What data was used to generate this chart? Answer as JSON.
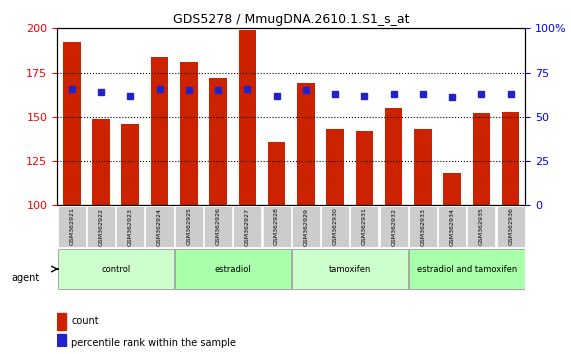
{
  "title": "GDS5278 / MmugDNA.2610.1.S1_s_at",
  "samples": [
    "GSM362921",
    "GSM362922",
    "GSM362923",
    "GSM362924",
    "GSM362925",
    "GSM362926",
    "GSM362927",
    "GSM362928",
    "GSM362929",
    "GSM362930",
    "GSM362931",
    "GSM362932",
    "GSM362933",
    "GSM362934",
    "GSM362935",
    "GSM362936"
  ],
  "bar_values": [
    192,
    149,
    146,
    184,
    181,
    172,
    199,
    136,
    169,
    143,
    142,
    155,
    143,
    118,
    152,
    153
  ],
  "dot_values": [
    66,
    64,
    62,
    66,
    65,
    65,
    66,
    62,
    65,
    63,
    62,
    63,
    63,
    61,
    63,
    63
  ],
  "bar_color": "#cc2200",
  "dot_color": "#2222cc",
  "ylim_left": [
    100,
    200
  ],
  "ylim_right": [
    0,
    100
  ],
  "yticks_left": [
    100,
    125,
    150,
    175,
    200
  ],
  "yticks_right": [
    0,
    25,
    50,
    75,
    100
  ],
  "groups": [
    {
      "label": "control",
      "start": 0,
      "end": 4,
      "color": "#ccffcc"
    },
    {
      "label": "estradiol",
      "start": 4,
      "end": 8,
      "color": "#aaffaa"
    },
    {
      "label": "tamoxifen",
      "start": 8,
      "end": 12,
      "color": "#ccffcc"
    },
    {
      "label": "estradiol and tamoxifen",
      "start": 12,
      "end": 16,
      "color": "#aaffaa"
    }
  ],
  "agent_label": "agent",
  "legend_items": [
    {
      "label": "count",
      "color": "#cc2200",
      "marker": "s"
    },
    {
      "label": "percentile rank within the sample",
      "color": "#2222cc",
      "marker": "s"
    }
  ],
  "grid_color": "#000000",
  "background_color": "#ffffff",
  "tick_area_color": "#cccccc"
}
